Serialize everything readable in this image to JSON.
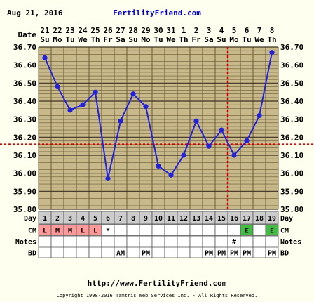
{
  "header": {
    "date": "Aug 21, 2016",
    "site": "FertilityFriend.com"
  },
  "footer": {
    "url": "http://www.FertilityFriend.com",
    "copyright": "Copyright 1998-2016 Tamtris Web Services Inc. - All Rights Reserved."
  },
  "labels": {
    "date": "Date",
    "day": "Day",
    "cm": "CM",
    "notes": "Notes",
    "bd": "BD"
  },
  "colors": {
    "line": "#2222dd",
    "grid": "#6b5a36",
    "cover": "#dd0000",
    "plot_bg": "#c8b98a",
    "cm_menstrual": "#ff9999",
    "cm_eggwhite": "#44bb44",
    "day_row": "#cccccc"
  },
  "chart_data": {
    "type": "line",
    "dates": [
      "21",
      "22",
      "23",
      "24",
      "25",
      "26",
      "27",
      "28",
      "29",
      "30",
      "31",
      "1",
      "2",
      "3",
      "4",
      "5",
      "6",
      "7",
      "8"
    ],
    "weekdays": [
      "Su",
      "Mo",
      "Tu",
      "We",
      "Th",
      "Fr",
      "Sa",
      "Su",
      "Mo",
      "Tu",
      "We",
      "Th",
      "Fr",
      "Sa",
      "Su",
      "Mo",
      "Tu",
      "We",
      "Th"
    ],
    "cycle_days": [
      "1",
      "2",
      "3",
      "4",
      "5",
      "6",
      "7",
      "8",
      "9",
      "10",
      "11",
      "12",
      "13",
      "14",
      "15",
      "16",
      "17",
      "18",
      "19"
    ],
    "temps": [
      36.64,
      36.48,
      36.35,
      36.38,
      36.45,
      35.97,
      36.29,
      36.44,
      36.37,
      36.04,
      35.99,
      36.1,
      36.29,
      36.15,
      36.24,
      36.1,
      36.18,
      36.32,
      36.67
    ],
    "y_ticks": [
      "36.70",
      "36.60",
      "36.50",
      "36.40",
      "36.30",
      "36.20",
      "36.10",
      "36.00",
      "35.90",
      "35.80"
    ],
    "ylim": [
      35.8,
      36.7
    ],
    "coverline": 36.16,
    "ovulation_day": "16",
    "cm": [
      "L",
      "M",
      "M",
      "L",
      "L",
      "*",
      "",
      "",
      "",
      "",
      "",
      "",
      "",
      "",
      "",
      "",
      "E",
      "",
      "E"
    ],
    "notes": [
      "",
      "",
      "",
      "",
      "",
      "",
      "",
      "",
      "",
      "",
      "",
      "",
      "",
      "",
      "",
      "#",
      "",
      "",
      ""
    ],
    "bd": [
      "",
      "",
      "",
      "",
      "",
      "",
      "AM",
      "",
      "PM",
      "",
      "",
      "",
      "",
      "PM",
      "PM",
      "PM",
      "PM",
      "",
      "PM"
    ]
  }
}
